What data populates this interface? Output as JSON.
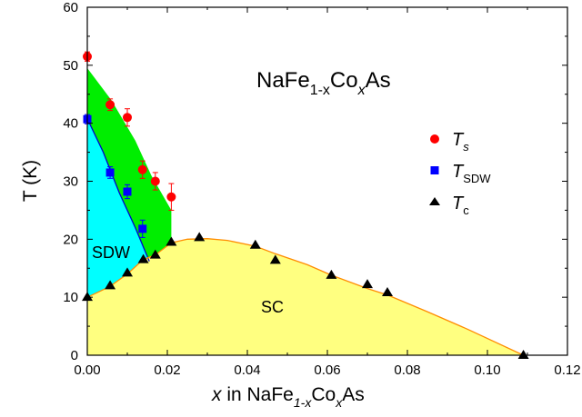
{
  "chart_data": {
    "type": "scatter",
    "title": "",
    "xlabel": {
      "prefix": "x",
      "mid": " in NaFe",
      "sub1": "1-x",
      "mid2": "Co",
      "sub2": "x",
      "suffix": "As"
    },
    "ylabel": "T (K)",
    "xlim": [
      0,
      0.12
    ],
    "ylim": [
      0,
      60
    ],
    "xticks": [
      "0.00",
      "0.02",
      "0.04",
      "0.06",
      "0.08",
      "0.10",
      "0.12"
    ],
    "yticks": [
      "0",
      "10",
      "20",
      "30",
      "40",
      "50",
      "60"
    ],
    "annotation": {
      "main": "NaFe",
      "sub1": "1-x",
      "mid": "Co",
      "sub2": "x",
      "suffix": "As"
    },
    "regions": [
      {
        "name": "SDW",
        "label": "SDW",
        "color": "#00ffff",
        "boundary": [
          [
            0,
            10
          ],
          [
            0,
            40.8
          ],
          [
            0.004,
            35
          ],
          [
            0.008,
            28
          ],
          [
            0.012,
            22
          ],
          [
            0.0155,
            16.2
          ],
          [
            0.014,
            16.2
          ],
          [
            0.01,
            14
          ],
          [
            0.0055,
            11.8
          ],
          [
            0,
            10
          ]
        ]
      },
      {
        "name": "structural",
        "label": "",
        "color": "#00ee00",
        "boundary": [
          [
            0,
            40.8
          ],
          [
            0,
            49.5
          ],
          [
            0.006,
            44
          ],
          [
            0.012,
            37
          ],
          [
            0.016,
            31
          ],
          [
            0.021,
            25
          ],
          [
            0.021,
            19.4
          ],
          [
            0.017,
            17.3
          ],
          [
            0.0155,
            16.2
          ],
          [
            0.012,
            22
          ],
          [
            0.008,
            28
          ],
          [
            0.004,
            35
          ],
          [
            0,
            40.8
          ]
        ]
      },
      {
        "name": "SC",
        "label": "SC",
        "color": "#ffff80",
        "boundary": [
          [
            0,
            0
          ],
          [
            0,
            10
          ],
          [
            0.0055,
            11.8
          ],
          [
            0.01,
            14
          ],
          [
            0.014,
            16.5
          ],
          [
            0.017,
            17.3
          ],
          [
            0.021,
            19.4
          ],
          [
            0.025,
            20
          ],
          [
            0.03,
            20.1
          ],
          [
            0.035,
            19.8
          ],
          [
            0.042,
            18.8
          ],
          [
            0.047,
            17.5
          ],
          [
            0.055,
            15.6
          ],
          [
            0.061,
            13.8
          ],
          [
            0.07,
            11.5
          ],
          [
            0.075,
            10.4
          ],
          [
            0.085,
            7.5
          ],
          [
            0.095,
            4.5
          ],
          [
            0.109,
            0
          ]
        ]
      }
    ],
    "series": [
      {
        "name": "Ts",
        "label_main": "T",
        "label_sub": "s",
        "marker": "circle",
        "color": "#ff0000",
        "points": [
          {
            "x": 0.0,
            "y": 51.5,
            "err": 0.8
          },
          {
            "x": 0.0057,
            "y": 43.2,
            "err": 1.0
          },
          {
            "x": 0.01,
            "y": 41.0,
            "err": 1.5
          },
          {
            "x": 0.0138,
            "y": 32.0,
            "err": 1.5
          },
          {
            "x": 0.017,
            "y": 30.0,
            "err": 1.5
          },
          {
            "x": 0.021,
            "y": 27.3,
            "err": 2.3
          }
        ]
      },
      {
        "name": "TSDW",
        "label_main": "T",
        "label_sub": "SDW",
        "marker": "square",
        "color": "#0000ff",
        "points": [
          {
            "x": 0.0,
            "y": 40.7,
            "err": 0.8
          },
          {
            "x": 0.0057,
            "y": 31.5,
            "err": 1.0
          },
          {
            "x": 0.01,
            "y": 28.2,
            "err": 1.2
          },
          {
            "x": 0.0138,
            "y": 21.8,
            "err": 1.5
          }
        ]
      },
      {
        "name": "Tc",
        "label_main": "T",
        "label_sub": "c",
        "marker": "triangle",
        "color": "#000000",
        "points": [
          {
            "x": 0.0,
            "y": 10.0
          },
          {
            "x": 0.0057,
            "y": 12.0
          },
          {
            "x": 0.01,
            "y": 14.2
          },
          {
            "x": 0.014,
            "y": 16.5
          },
          {
            "x": 0.017,
            "y": 17.3
          },
          {
            "x": 0.021,
            "y": 19.5
          },
          {
            "x": 0.028,
            "y": 20.3
          },
          {
            "x": 0.042,
            "y": 19.0
          },
          {
            "x": 0.047,
            "y": 16.4
          },
          {
            "x": 0.061,
            "y": 13.8
          },
          {
            "x": 0.07,
            "y": 12.2
          },
          {
            "x": 0.075,
            "y": 10.8
          },
          {
            "x": 0.109,
            "y": 0.0
          }
        ]
      }
    ],
    "fit_curves": [
      {
        "name": "sdw-boundary",
        "color": "#0000cc",
        "points": [
          [
            0,
            40.8
          ],
          [
            0.004,
            35
          ],
          [
            0.008,
            28
          ],
          [
            0.012,
            22
          ],
          [
            0.0155,
            16.2
          ]
        ]
      },
      {
        "name": "sc-dome",
        "color": "#ff8c00",
        "points": [
          [
            0,
            10
          ],
          [
            0.0055,
            11.8
          ],
          [
            0.01,
            14
          ],
          [
            0.014,
            16.5
          ],
          [
            0.017,
            17.3
          ],
          [
            0.021,
            19.4
          ],
          [
            0.025,
            20
          ],
          [
            0.03,
            20.1
          ],
          [
            0.035,
            19.8
          ],
          [
            0.042,
            18.8
          ],
          [
            0.047,
            17.5
          ],
          [
            0.055,
            15.6
          ],
          [
            0.061,
            13.8
          ],
          [
            0.07,
            11.5
          ],
          [
            0.075,
            10.4
          ],
          [
            0.085,
            7.5
          ],
          [
            0.095,
            4.5
          ],
          [
            0.109,
            0
          ]
        ]
      }
    ],
    "legend": {
      "placement": "right-middle"
    },
    "grid": false
  }
}
